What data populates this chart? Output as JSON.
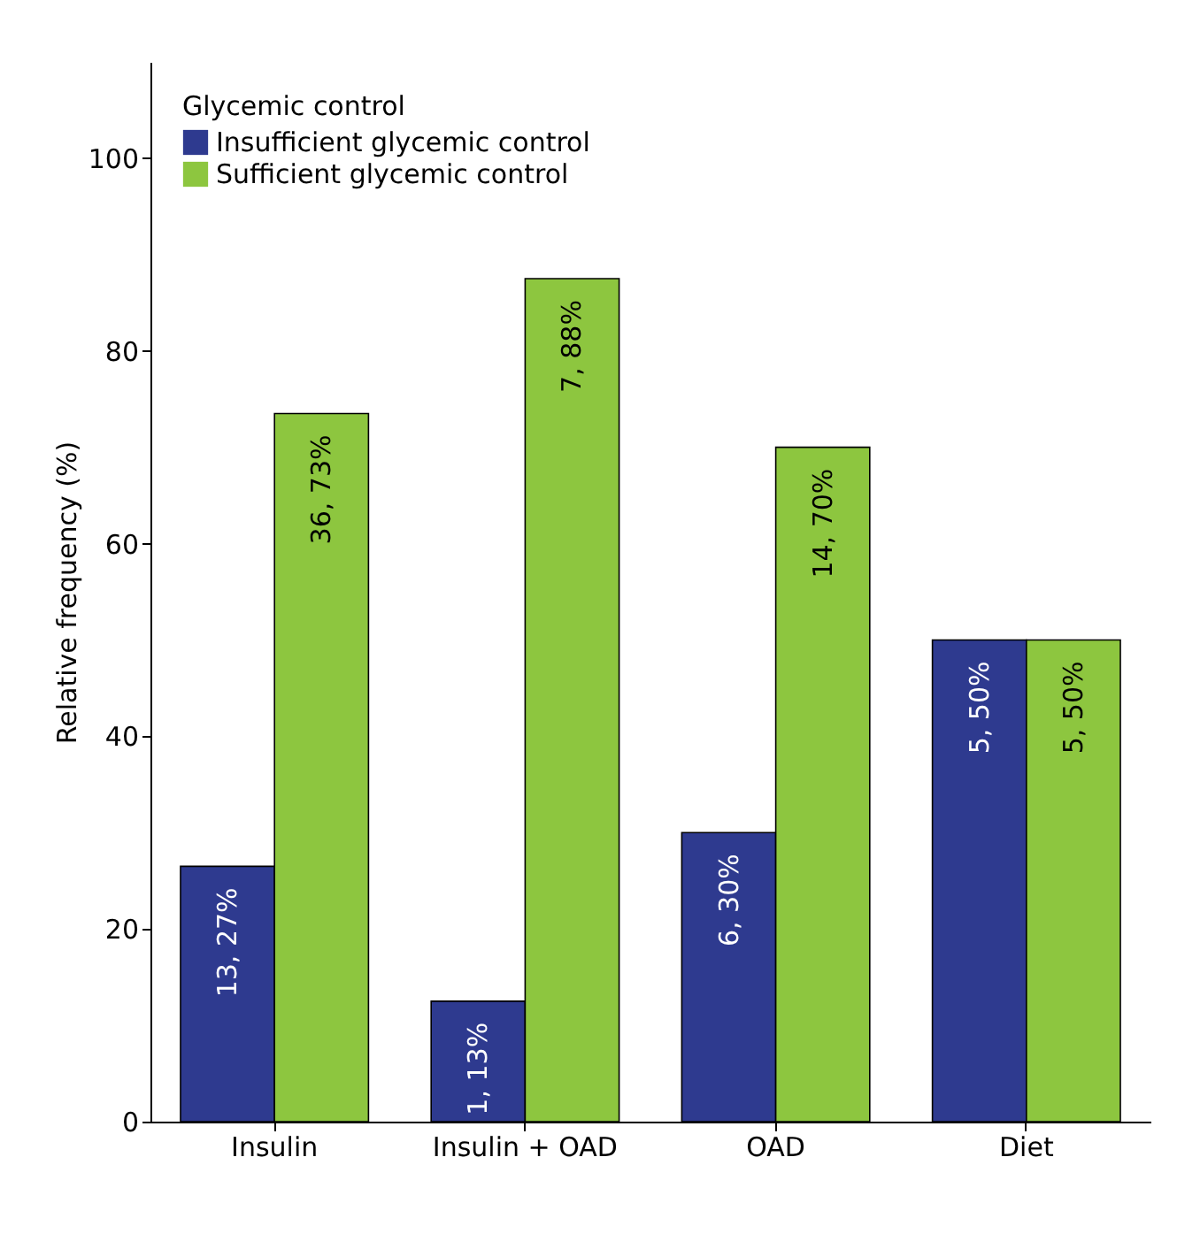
{
  "chart_data": {
    "type": "bar",
    "ylabel": "Relative frequency (%)",
    "legend_title": "Glycemic control",
    "categories": [
      "Insulin",
      "Insulin + OAD",
      "OAD",
      "Diet"
    ],
    "series": [
      {
        "name": "Insufficient glycemic control",
        "color": "#2e3a8f",
        "values": [
          26.5,
          12.5,
          30,
          50
        ],
        "value_labels": [
          "13, 27%",
          "1, 13%",
          "6, 30%",
          "5, 50%"
        ]
      },
      {
        "name": "Sufficient glycemic control",
        "color": "#8dc63f",
        "values": [
          73.5,
          87.5,
          70,
          50
        ],
        "value_labels": [
          "36, 73%",
          "7, 88%",
          "14, 70%",
          "5, 50%"
        ]
      }
    ],
    "ylim": [
      0,
      110
    ],
    "yticks": [
      0,
      20,
      40,
      60,
      80,
      100
    ],
    "grid": false,
    "legend": "top left"
  }
}
